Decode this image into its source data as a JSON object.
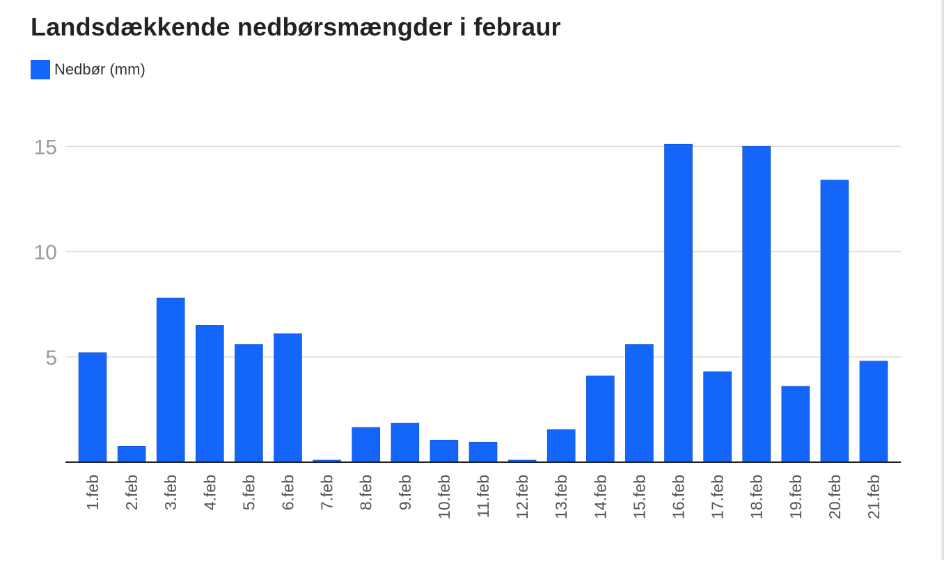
{
  "title": "Landsdækkende nedbørsmængder i febraur",
  "legend": {
    "label": "Nedbør (mm)"
  },
  "colors": {
    "bar": "#1466fa",
    "grid": "#dcdcdc",
    "axis": "#222222",
    "tick": "#9a9a9a",
    "label": "#555555"
  },
  "chart_data": {
    "type": "bar",
    "categories": [
      "1.feb",
      "2.feb",
      "3.feb",
      "4.feb",
      "5.feb",
      "6.feb",
      "7.feb",
      "8.feb",
      "9.feb",
      "10.feb",
      "11.feb",
      "12.feb",
      "13.feb",
      "14.feb",
      "15.feb",
      "16.feb",
      "17.feb",
      "18.feb",
      "19.feb",
      "20.feb",
      "21.feb"
    ],
    "series": [
      {
        "name": "Nedbør (mm)",
        "values": [
          5.2,
          0.75,
          7.8,
          6.5,
          5.6,
          6.1,
          0.1,
          1.65,
          1.85,
          1.05,
          0.95,
          0.1,
          1.55,
          4.1,
          5.6,
          15.1,
          4.3,
          15.0,
          3.6,
          13.4,
          4.8
        ]
      }
    ],
    "yticks": [
      5,
      10,
      15
    ],
    "ylim": [
      0,
      15.1
    ],
    "grid": true,
    "legend_position": "top-left"
  }
}
